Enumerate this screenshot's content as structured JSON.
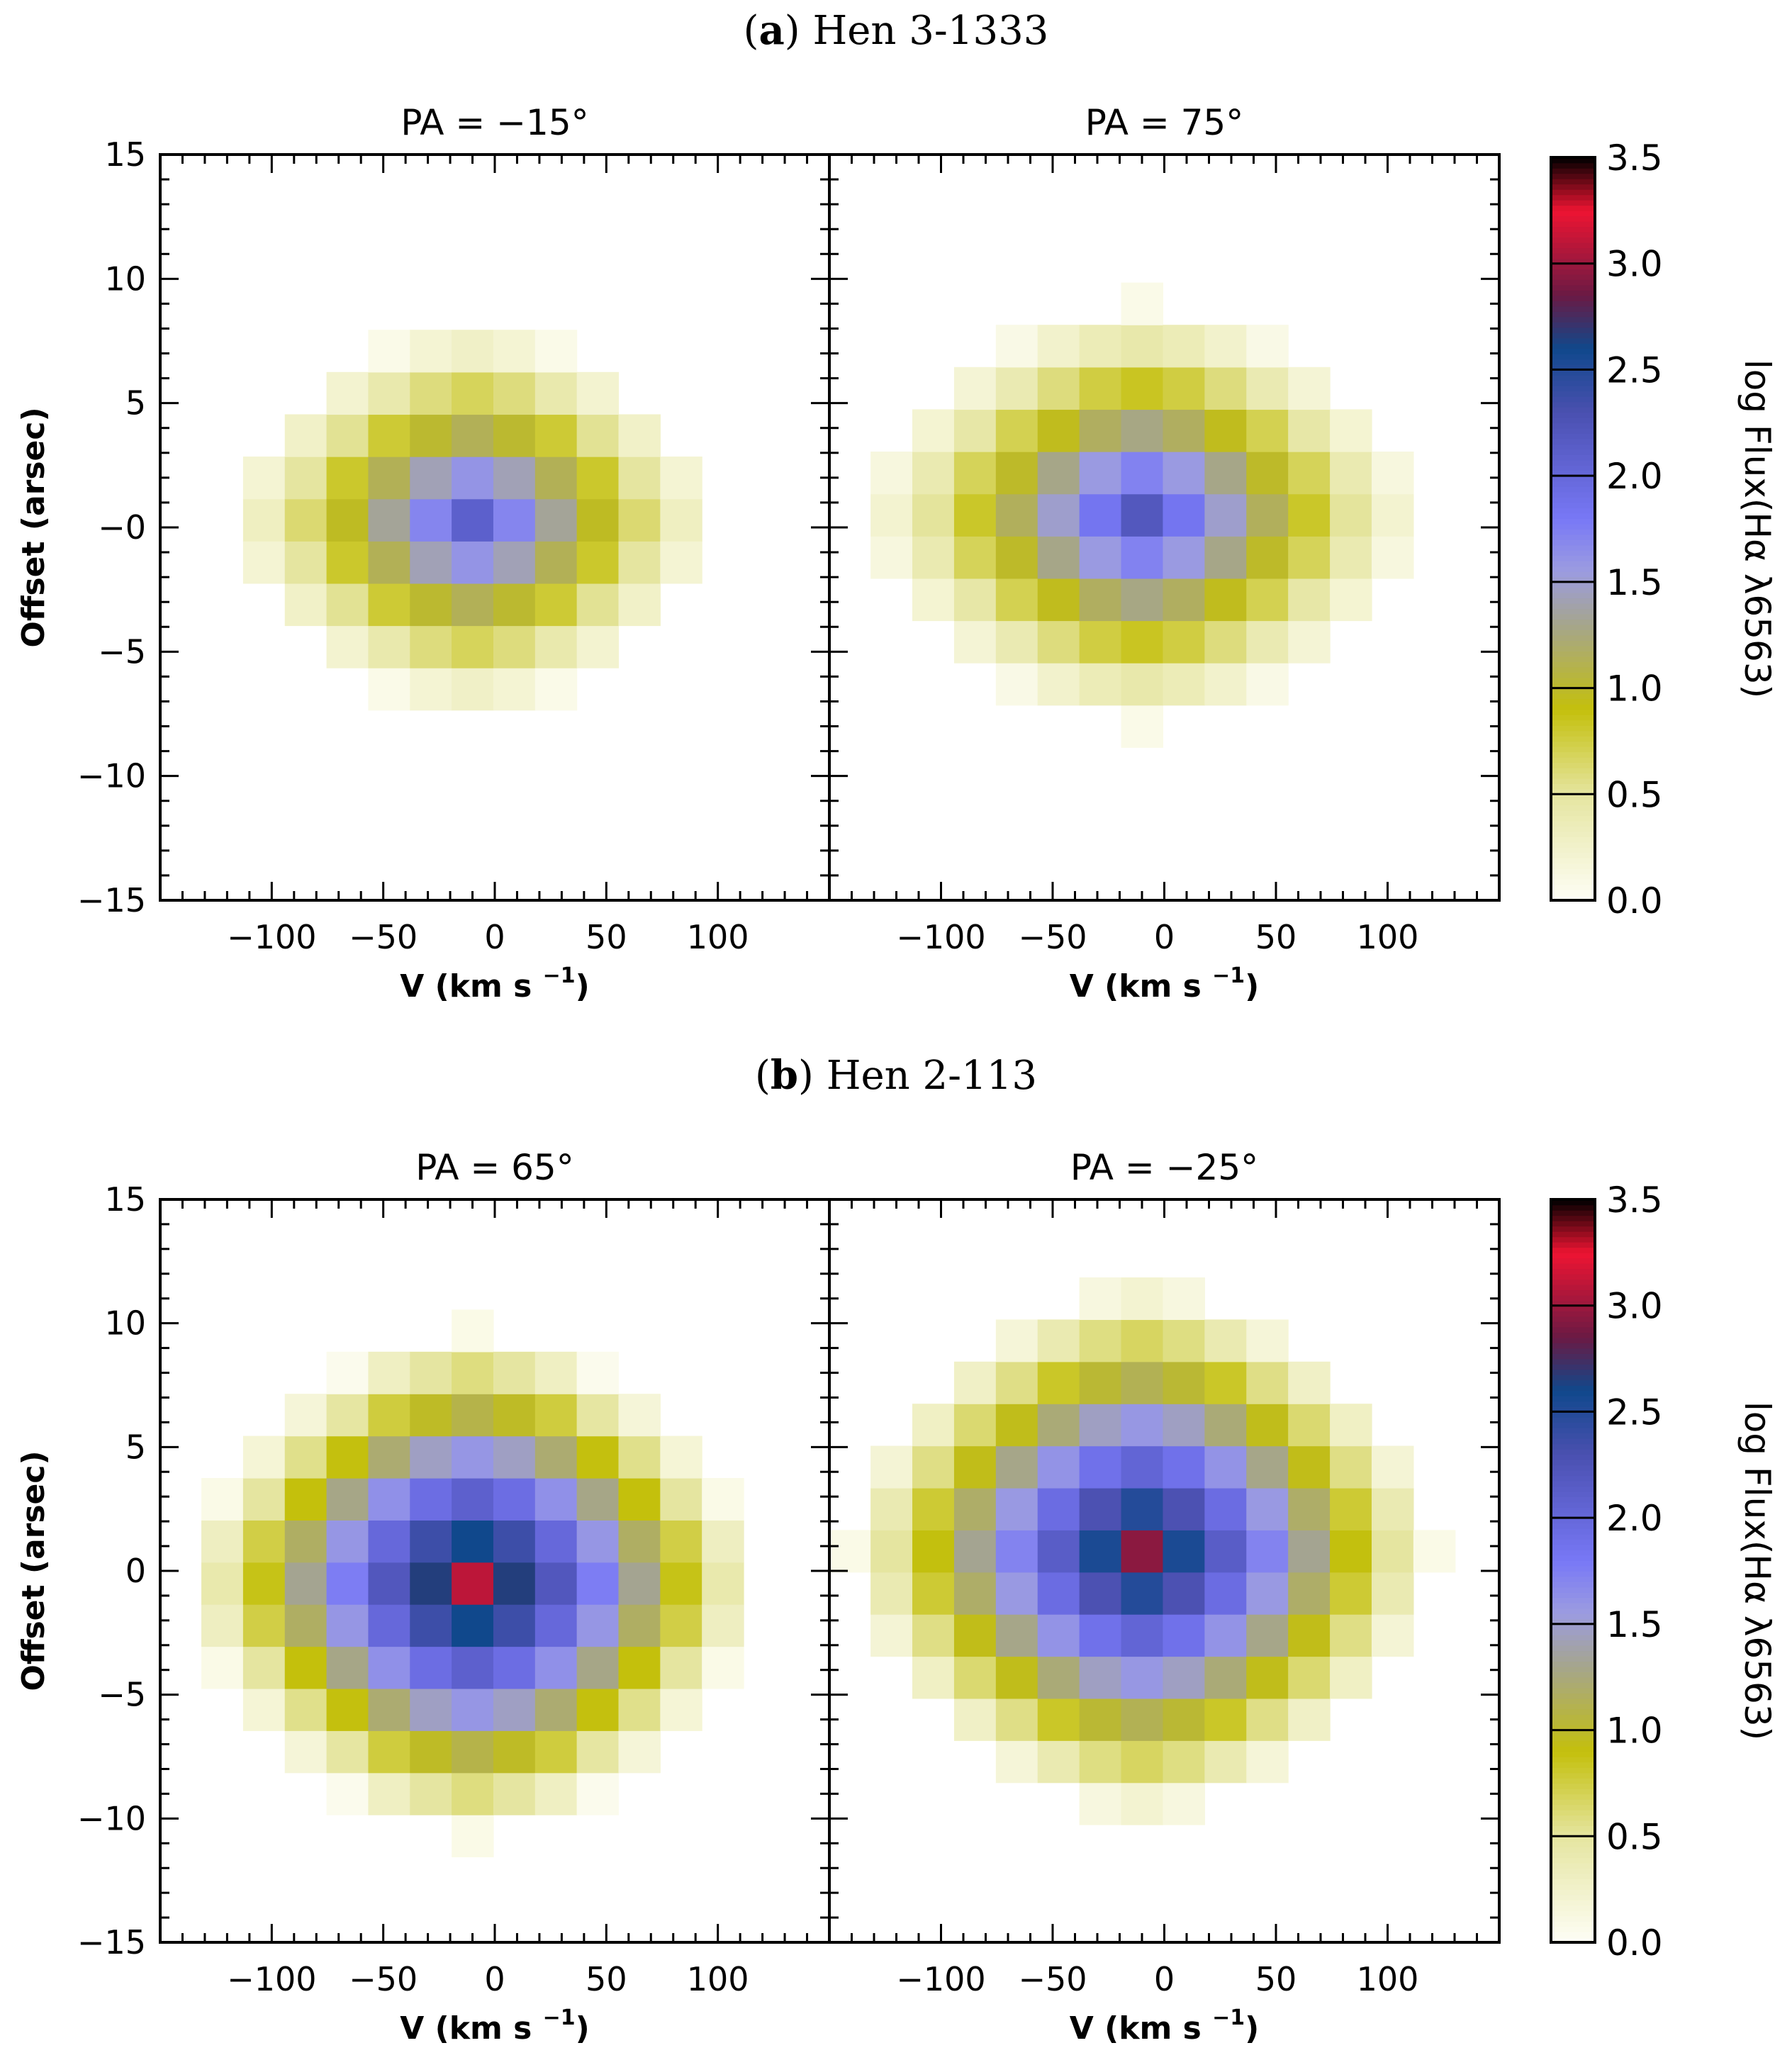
{
  "figure": {
    "panel_a": {
      "letter": "a",
      "name": "Hen 3-1333"
    },
    "panel_b": {
      "letter": "b",
      "name": "Hen 2-113"
    }
  },
  "chart_data": [
    {
      "type": "heatmap",
      "id": "a-left",
      "title": "PA = −15°",
      "xlabel": "V (km s",
      "xlabel_sup": "−1",
      "xlabel_tail": ")",
      "ylabel": "Offset (arsec)",
      "xlim": [
        -150,
        150
      ],
      "ylim": [
        -15,
        15
      ],
      "xticks": [
        -100,
        -50,
        0,
        50,
        100
      ],
      "xtick_labels": [
        "−100",
        "−50",
        "0",
        "50",
        "100"
      ],
      "yticks": [
        -15,
        -10,
        -5,
        0,
        5,
        10,
        15
      ],
      "ytick_labels": [
        "−15",
        "−10",
        "−5",
        "−0",
        "5",
        "10",
        "15"
      ],
      "cell": {
        "dv": 18.7,
        "dy": 1.7
      },
      "blob": {
        "v0": -10,
        "y0": 0.3,
        "peak": 2.1,
        "rv": 115,
        "ry": 8.2,
        "pow": 1.15
      }
    },
    {
      "type": "heatmap",
      "id": "a-right",
      "title": "PA = 75°",
      "xlabel": "V (km s",
      "xlabel_sup": "−1",
      "xlabel_tail": ")",
      "ylabel": "",
      "xlim": [
        -150,
        150
      ],
      "ylim": [
        -15,
        15
      ],
      "xticks": [
        -100,
        -50,
        0,
        50,
        100
      ],
      "xtick_labels": [
        "−100",
        "−50",
        "0",
        "50",
        "100"
      ],
      "yticks": [
        -15,
        -10,
        -5,
        0,
        5,
        10,
        15
      ],
      "ytick_labels": [],
      "cell": {
        "dv": 18.7,
        "dy": 1.7
      },
      "blob": {
        "v0": -10,
        "y0": 0.5,
        "peak": 2.2,
        "rv": 130,
        "ry": 9.0,
        "pow": 1.15
      }
    },
    {
      "type": "heatmap",
      "id": "b-left",
      "title": "PA = 65°",
      "xlabel": "V (km s",
      "xlabel_sup": "−1",
      "xlabel_tail": ")",
      "ylabel": "Offset (arsec)",
      "xlim": [
        -150,
        150
      ],
      "ylim": [
        -15,
        15
      ],
      "xticks": [
        -100,
        -50,
        0,
        50,
        100
      ],
      "xtick_labels": [
        "−100",
        "−50",
        "0",
        "50",
        "100"
      ],
      "yticks": [
        -15,
        -10,
        -5,
        0,
        5,
        10,
        15
      ],
      "ytick_labels": [
        "−15",
        "−10",
        "−5",
        "0",
        "5",
        "10",
        "15"
      ],
      "cell": {
        "dv": 18.7,
        "dy": 1.7
      },
      "blob": {
        "v0": -10,
        "y0": -0.5,
        "peak": 3.1,
        "rv": 130,
        "ry": 10.5,
        "pow": 1.0
      }
    },
    {
      "type": "heatmap",
      "id": "b-right",
      "title": "PA = −25°",
      "xlabel": "V (km s",
      "xlabel_sup": "−1",
      "xlabel_tail": ")",
      "ylabel": "",
      "xlim": [
        -150,
        150
      ],
      "ylim": [
        -15,
        15
      ],
      "xticks": [
        -100,
        -50,
        0,
        50,
        100
      ],
      "xtick_labels": [
        "−100",
        "−50",
        "0",
        "50",
        "100"
      ],
      "yticks": [
        -15,
        -10,
        -5,
        0,
        5,
        10,
        15
      ],
      "ytick_labels": [],
      "cell": {
        "dv": 18.7,
        "dy": 1.7
      },
      "blob": {
        "v0": -10,
        "y0": 0.8,
        "peak": 2.95,
        "rv": 135,
        "ry": 11.0,
        "pow": 1.0
      }
    }
  ],
  "colorbar": {
    "label": "log Flux(Hα λ6563)",
    "range": [
      0.0,
      3.5
    ],
    "ticks": [
      0.0,
      0.5,
      1.0,
      1.5,
      2.0,
      2.5,
      3.0,
      3.5
    ],
    "tick_labels": [
      "0.0",
      "0.5",
      "1.0",
      "1.5",
      "2.0",
      "2.5",
      "3.0",
      "3.5"
    ],
    "stops": [
      {
        "v": 0.0,
        "color": "#fefef6"
      },
      {
        "v": 0.5,
        "color": "#e5e5a0"
      },
      {
        "v": 0.9,
        "color": "#c4c00c"
      },
      {
        "v": 1.3,
        "color": "#a5a58c"
      },
      {
        "v": 1.55,
        "color": "#9c9ce0"
      },
      {
        "v": 1.8,
        "color": "#7878f6"
      },
      {
        "v": 2.3,
        "color": "#4a50b0"
      },
      {
        "v": 2.6,
        "color": "#10488c"
      },
      {
        "v": 2.85,
        "color": "#6a1a44"
      },
      {
        "v": 3.25,
        "color": "#ee1432"
      },
      {
        "v": 3.5,
        "color": "#000000"
      }
    ]
  }
}
